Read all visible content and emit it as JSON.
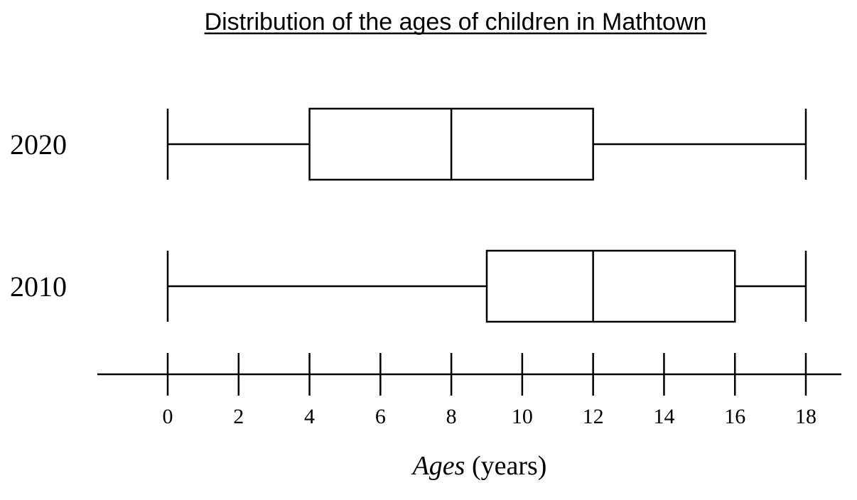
{
  "chart_data": {
    "type": "boxplot",
    "title": "Distribution of the ages of children in Mathtown",
    "xlabel_main": "Ages",
    "xlabel_unit": "(years)",
    "xlim": [
      0,
      18
    ],
    "x_ticks": [
      0,
      2,
      4,
      6,
      8,
      10,
      12,
      14,
      16,
      18
    ],
    "series": [
      {
        "name": "2020",
        "min": 0,
        "q1": 4,
        "median": 8,
        "q3": 12,
        "max": 18
      },
      {
        "name": "2010",
        "min": 0,
        "q1": 9,
        "median": 12,
        "q3": 16,
        "max": 18
      }
    ]
  }
}
